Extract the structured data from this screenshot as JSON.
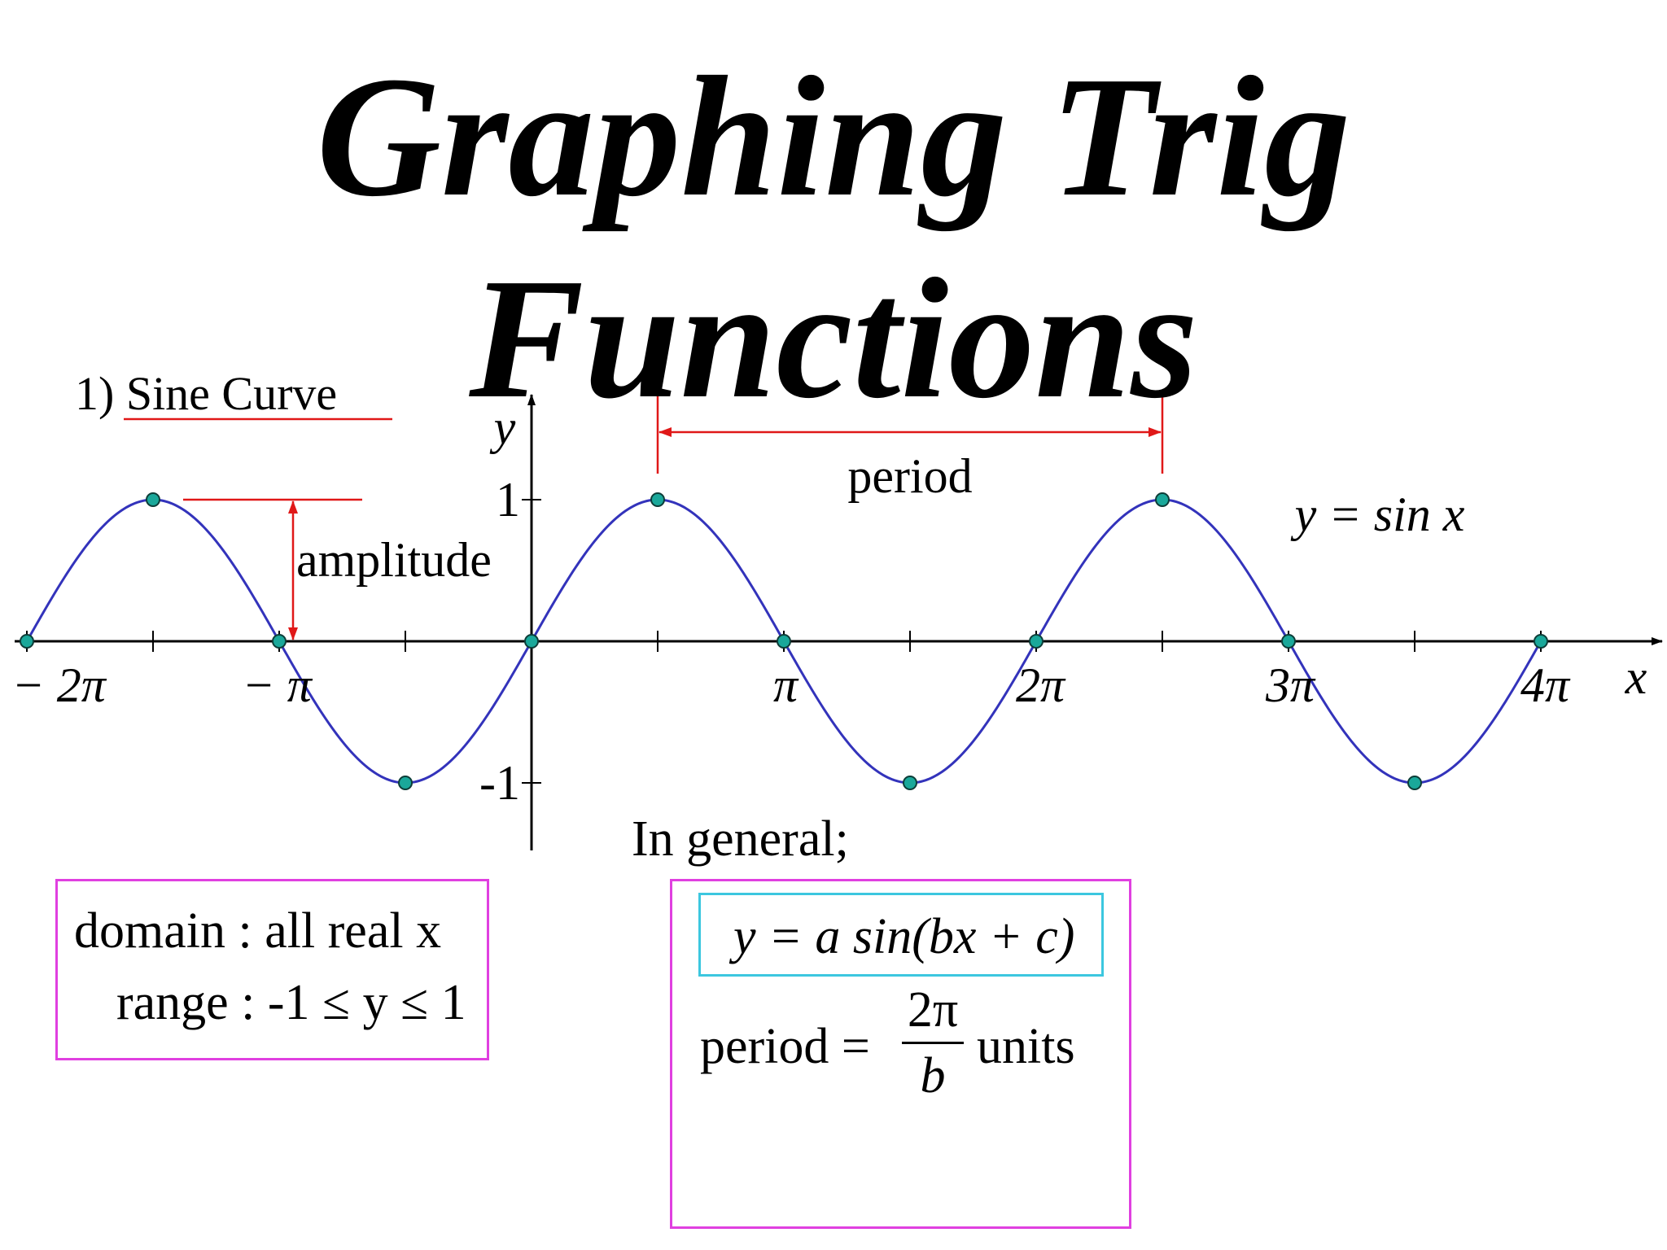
{
  "title": {
    "line1": "Graphing Trig",
    "line2": "Functions"
  },
  "section_heading": "1) Sine Curve",
  "colors": {
    "curve": "#3333bb",
    "point_fill": "#1aa89a",
    "annotation": "#e01818",
    "box_border": "#e040e0",
    "formula_border": "#3cc7df"
  },
  "chart_data": {
    "type": "line",
    "function": "y = sin x",
    "xlim": [
      -2,
      4.4
    ],
    "x_unit": "π",
    "ylim": [
      -1.4,
      1.65
    ],
    "series": [
      {
        "name": "y = sin x",
        "x": [
          -2,
          -1.5,
          -1,
          -0.5,
          0,
          0.5,
          1,
          1.5,
          2,
          2.5,
          3,
          3.5,
          4
        ],
        "y": [
          0,
          1,
          0,
          -1,
          0,
          1,
          0,
          -1,
          0,
          1,
          0,
          -1,
          0
        ]
      }
    ],
    "x_ticks": [
      {
        "value": -2,
        "label": "− 2π"
      },
      {
        "value": -1,
        "label": "− π"
      },
      {
        "value": 1,
        "label": "π"
      },
      {
        "value": 2,
        "label": "2π"
      },
      {
        "value": 3,
        "label": "3π"
      },
      {
        "value": 4,
        "label": "4π"
      }
    ],
    "y_ticks": [
      {
        "value": 1,
        "label": "1"
      },
      {
        "value": -1,
        "label": "-1"
      }
    ],
    "xlabel": "x",
    "ylabel": "y",
    "equation_label": "y = sin x",
    "annotations": {
      "amplitude": "amplitude",
      "period": "period",
      "period_from": 0.5,
      "period_to": 2.5
    }
  },
  "general": {
    "heading": "In general;",
    "formula": "y = a sin(bx + c)",
    "period_lhs": "period =",
    "period_num": "2π",
    "period_den": "b",
    "period_unit": "units"
  },
  "domain_box": {
    "domain": "domain : all real x",
    "range": "range : -1 ≤ y ≤ 1"
  }
}
